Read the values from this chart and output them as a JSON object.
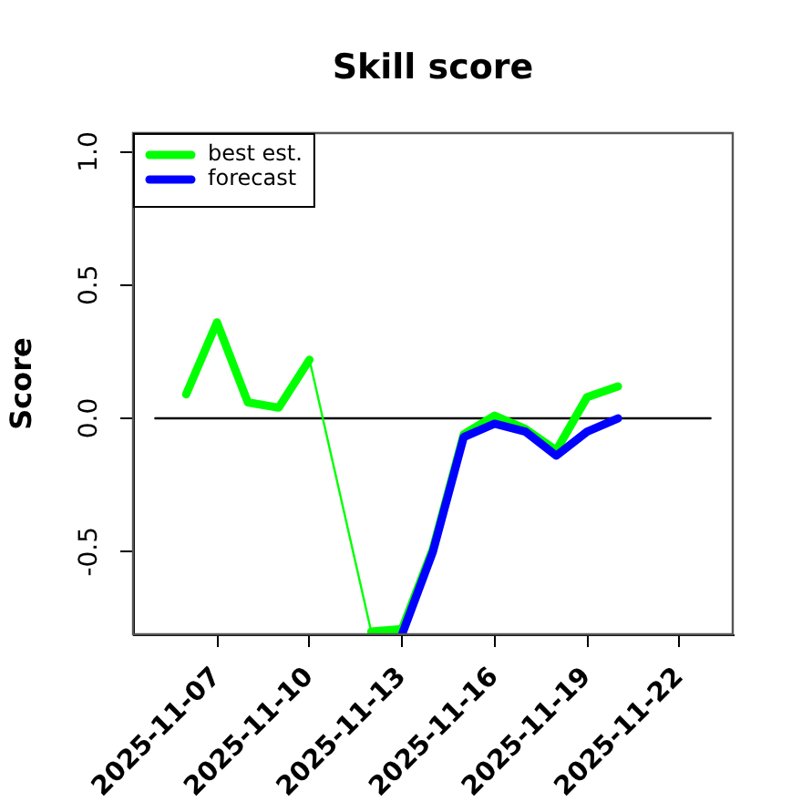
{
  "chart_data": {
    "type": "line",
    "title": "Skill score",
    "ylabel": "Score",
    "xlim": [
      "2025-11-04T06:43",
      "2025-11-23T17:17"
    ],
    "xticks": [
      "2025-11-07",
      "2025-11-10",
      "2025-11-13",
      "2025-11-16",
      "2025-11-19",
      "2025-11-22"
    ],
    "ylim": [
      -0.81,
      1.07
    ],
    "yticks": [
      -0.5,
      {
        "value": 0,
        "label": "0.0"
      },
      0.5,
      {
        "value": 1,
        "label": "1.0"
      }
    ],
    "legend": "top left",
    "series": [
      {
        "color": "#000000",
        "x": [
          "2025-11-05",
          "2025-11-23"
        ],
        "values": [
          0,
          0
        ]
      },
      {
        "color": "#00ff00",
        "x": [
          "2025-11-10",
          "2025-11-12"
        ],
        "values": [
          0.22,
          -0.8
        ]
      },
      {
        "name": "best est.",
        "color": "#00ff00",
        "x": [
          "2025-11-06",
          "2025-11-07",
          "2025-11-08",
          "2025-11-09",
          "2025-11-10",
          "2025-11-11",
          "2025-11-12",
          "2025-11-13",
          "2025-11-14",
          "2025-11-15",
          "2025-11-16",
          "2025-11-17",
          "2025-11-18",
          "2025-11-19",
          "2025-11-20"
        ],
        "values": [
          0.09,
          0.36,
          0.06,
          0.04,
          0.22,
          null,
          -0.8,
          -0.79,
          -0.49,
          -0.06,
          0.01,
          -0.04,
          -0.12,
          0.08,
          0.12
        ]
      },
      {
        "name": "forecast",
        "color": "#0000ff",
        "x": [
          "2025-11-13",
          "2025-11-14",
          "2025-11-15",
          "2025-11-16",
          "2025-11-17",
          "2025-11-18",
          "2025-11-19",
          "2025-11-20"
        ],
        "values": [
          -0.81,
          -0.5,
          -0.07,
          -0.02,
          -0.05,
          -0.14,
          -0.05,
          0
        ]
      }
    ]
  }
}
